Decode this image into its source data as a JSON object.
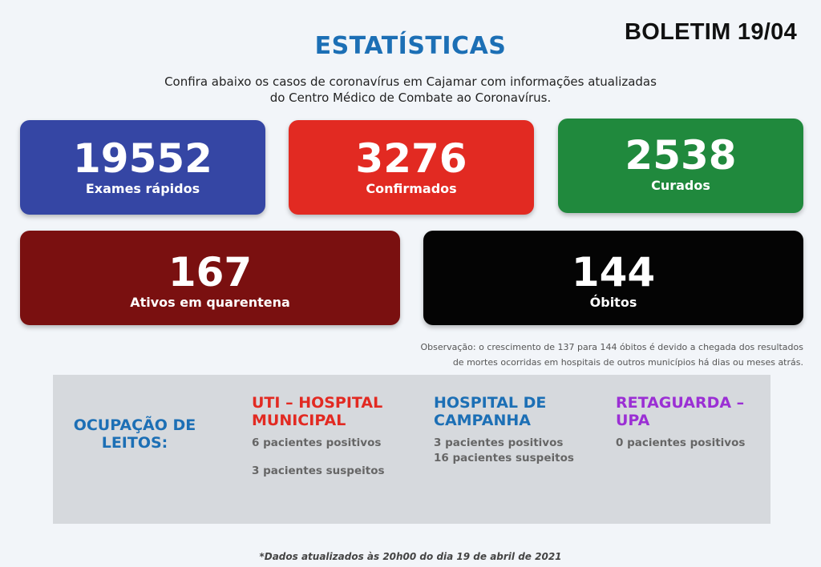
{
  "bulletin": "BOLETIM 19/04",
  "title": "ESTATÍSTICAS",
  "subtitle": {
    "line1": "Confira abaixo os casos de coronavírus em Cajamar com informações atualizadas",
    "line2": "do Centro Médico de Combate ao Coronavírus."
  },
  "cards": [
    {
      "value": "19552",
      "label": "Exames rápidos",
      "color": "#3546a4"
    },
    {
      "value": "3276",
      "label": "Confirmados",
      "color": "#e22a22"
    },
    {
      "value": "2538",
      "label": "Curados",
      "color": "#20893d"
    },
    {
      "value": "167",
      "label": "Ativos em quarentena",
      "color": "#7a1010"
    },
    {
      "value": "144",
      "label": "Óbitos",
      "color": "#040404"
    }
  ],
  "note": {
    "line1": "Observação: o crescimento de 137 para 144 óbitos é devido a chegada dos resultados",
    "line2": "de mortes ocorridas em hospitais de outros municípios há dias ou meses atrás."
  },
  "occupancy": {
    "title_line1": "OCUPAÇÃO DE",
    "title_line2": "LEITOS:",
    "columns": [
      {
        "heading_line1": "UTI – HOSPITAL",
        "heading_line2": "MUNICIPAL",
        "line1": "6 pacientes positivos",
        "line2": "3 pacientes suspeitos",
        "color": "#e22a22"
      },
      {
        "heading_line1": "HOSPITAL DE",
        "heading_line2": "CAMPANHA",
        "line1": "3 pacientes positivos",
        "line2": "16 pacientes suspeitos",
        "color": "#1c6fb5"
      },
      {
        "heading_line1": "RETAGUARDA –",
        "heading_line2": "UPA",
        "line1": "0 pacientes positivos",
        "color": "#9b2fd4"
      }
    ]
  },
  "footer": "*Dados atualizados às 20h00 do dia 19 de abril de 2021"
}
